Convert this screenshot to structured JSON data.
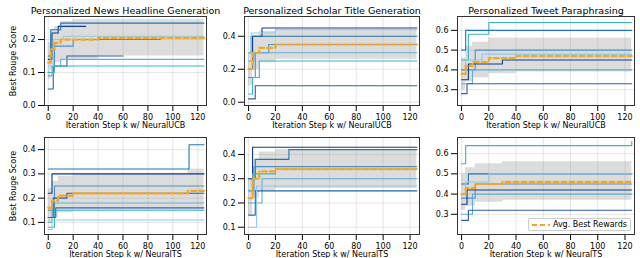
{
  "chart_data": [
    {
      "type": "line",
      "title": "Personalized News Headline Generation",
      "xlabel": "Iteration Step k w/ NeuralUCB",
      "ylabel": "Best Rouge Score",
      "xlim": [
        -3,
        127
      ],
      "xticks": [
        0,
        20,
        40,
        60,
        80,
        100,
        120
      ],
      "ylim": [
        0,
        0.27
      ],
      "yticks": [
        {
          "value": 0,
          "label": "0.0"
        },
        0.1,
        0.2
      ],
      "grid": true,
      "band": {
        "x": [
          0,
          2,
          5,
          10,
          20,
          40,
          125
        ],
        "lower": [
          0.08,
          0.11,
          0.13,
          0.14,
          0.14,
          0.15,
          0.15
        ],
        "upper": [
          0.19,
          0.23,
          0.24,
          0.255,
          0.26,
          0.26,
          0.26
        ]
      },
      "series": [
        {
          "color": "#0b3d91",
          "x": [
            0,
            3,
            8,
            30
          ],
          "values": [
            0.14,
            0.22,
            0.24,
            0.24
          ]
        },
        {
          "color": "#1f77b4",
          "x": [
            0,
            2,
            10,
            125
          ],
          "values": [
            0.15,
            0.23,
            0.25,
            0.25
          ]
        },
        {
          "color": "#4a90c8",
          "x": [
            0,
            5,
            20,
            90
          ],
          "values": [
            0.1,
            0.18,
            0.2,
            0.2
          ]
        },
        {
          "color": "#2b5fa8",
          "x": [
            0,
            4,
            15,
            60
          ],
          "values": [
            0.05,
            0.12,
            0.15,
            0.15
          ]
        },
        {
          "color": "#5fb0d6",
          "x": [
            0,
            3,
            10,
            125
          ],
          "values": [
            0.09,
            0.12,
            0.14,
            0.14
          ]
        },
        {
          "color": "#3bb5c4",
          "x": [
            0,
            5,
            125
          ],
          "values": [
            0.1,
            0.12,
            0.12
          ]
        },
        {
          "color": "#8fc9e6",
          "x": [
            0,
            4,
            12,
            125
          ],
          "values": [
            0.12,
            0.2,
            0.21,
            0.21
          ]
        },
        {
          "name": "Avg. Best Rewards",
          "color": "#f5a623",
          "line_style": "dashed",
          "x": [
            0,
            2,
            5,
            10,
            20,
            40,
            125
          ],
          "values": [
            0.13,
            0.17,
            0.19,
            0.2,
            0.2,
            0.205,
            0.205
          ]
        }
      ]
    },
    {
      "type": "line",
      "title": "Personalized Scholar Title Generation",
      "xlabel": "Iteration Step k w/ NeuralUCB",
      "xlim": [
        -3,
        127
      ],
      "xticks": [
        0,
        20,
        40,
        60,
        80,
        100,
        120
      ],
      "ylim": [
        -0.02,
        0.52
      ],
      "yticks": [
        {
          "value": 0,
          "label": "0.0"
        },
        0.2,
        0.4
      ],
      "grid": true,
      "band": {
        "x": [
          0,
          3,
          8,
          20,
          125
        ],
        "lower": [
          0.1,
          0.2,
          0.24,
          0.26,
          0.26
        ],
        "upper": [
          0.3,
          0.4,
          0.43,
          0.44,
          0.44
        ]
      },
      "series": [
        {
          "color": "#0b3d91",
          "x": [
            0,
            3,
            10,
            125
          ],
          "values": [
            0.2,
            0.4,
            0.45,
            0.45
          ]
        },
        {
          "color": "#1f77b4",
          "x": [
            0,
            2,
            125
          ],
          "values": [
            0.3,
            0.4,
            0.4
          ]
        },
        {
          "color": "#4a90c8",
          "x": [
            0,
            5,
            15,
            125
          ],
          "values": [
            0.15,
            0.3,
            0.35,
            0.35
          ]
        },
        {
          "color": "#5fb0d6",
          "x": [
            0,
            4,
            125
          ],
          "values": [
            0.25,
            0.3,
            0.3
          ]
        },
        {
          "color": "#3bb5c4",
          "x": [
            0,
            3,
            8,
            125
          ],
          "values": [
            0.05,
            0.15,
            0.25,
            0.25
          ]
        },
        {
          "color": "#2b5fa8",
          "x": [
            0,
            5,
            125
          ],
          "values": [
            0.02,
            0.1,
            0.1
          ]
        },
        {
          "color": "#8fc9e6",
          "x": [
            0,
            2,
            20,
            125
          ],
          "values": [
            0.3,
            0.42,
            0.44,
            0.44
          ]
        },
        {
          "name": "Avg. Best Rewards",
          "color": "#f5a623",
          "line_style": "dashed",
          "x": [
            0,
            3,
            8,
            20,
            125
          ],
          "values": [
            0.2,
            0.3,
            0.33,
            0.35,
            0.35
          ]
        }
      ]
    },
    {
      "type": "line",
      "title": "Personalized Tweet Paraphrasing",
      "xlabel": "Iteration Step k w/ NeuralUCB",
      "xlim": [
        -3,
        127
      ],
      "xticks": [
        0,
        20,
        40,
        60,
        80,
        100,
        120
      ],
      "ylim": [
        0.22,
        0.67
      ],
      "yticks": [
        0.3,
        0.4,
        0.5,
        0.6
      ],
      "grid": true,
      "band": {
        "x": [
          0,
          3,
          8,
          20,
          40,
          125
        ],
        "lower": [
          0.3,
          0.34,
          0.36,
          0.38,
          0.39,
          0.39
        ],
        "upper": [
          0.46,
          0.52,
          0.54,
          0.56,
          0.56,
          0.56
        ]
      },
      "series": [
        {
          "color": "#3bb5c4",
          "x": [
            0,
            5,
            20,
            125
          ],
          "values": [
            0.45,
            0.58,
            0.64,
            0.64
          ]
        },
        {
          "color": "#1f77b4",
          "x": [
            0,
            3,
            125
          ],
          "values": [
            0.5,
            0.6,
            0.6
          ]
        },
        {
          "color": "#4a90c8",
          "x": [
            0,
            10,
            125
          ],
          "values": [
            0.4,
            0.5,
            0.5
          ]
        },
        {
          "color": "#0b3d91",
          "x": [
            0,
            5,
            30,
            125
          ],
          "values": [
            0.35,
            0.43,
            0.45,
            0.45
          ]
        },
        {
          "color": "#5fb0d6",
          "x": [
            0,
            8,
            125
          ],
          "values": [
            0.33,
            0.4,
            0.4
          ]
        },
        {
          "color": "#2b5fa8",
          "x": [
            0,
            4,
            125
          ],
          "values": [
            0.28,
            0.33,
            0.33
          ]
        },
        {
          "color": "#8fc9e6",
          "x": [
            0,
            3,
            15,
            125
          ],
          "values": [
            0.38,
            0.45,
            0.48,
            0.48
          ]
        },
        {
          "name": "Avg. Best Rewards",
          "color": "#f5a623",
          "line_style": "dashed",
          "x": [
            0,
            3,
            8,
            20,
            40,
            125
          ],
          "values": [
            0.38,
            0.42,
            0.44,
            0.46,
            0.47,
            0.47
          ]
        }
      ]
    },
    {
      "type": "line",
      "xlabel": "Iteration Step k w/ NeuralTS",
      "ylabel": "Best Rouge Score",
      "xlim": [
        -3,
        127
      ],
      "xticks": [
        0,
        20,
        40,
        60,
        80,
        100,
        120
      ],
      "ylim": [
        0.05,
        0.45
      ],
      "yticks": [
        0.1,
        0.2,
        0.3,
        0.4
      ],
      "grid": true,
      "band": {
        "x": [
          0,
          3,
          8,
          20,
          112,
          125
        ],
        "lower": [
          0.1,
          0.12,
          0.14,
          0.15,
          0.15,
          0.15
        ],
        "upper": [
          0.24,
          0.27,
          0.29,
          0.3,
          0.32,
          0.32
        ]
      },
      "series": [
        {
          "color": "#1f77b4",
          "x": [
            0,
            110,
            113,
            125
          ],
          "values": [
            0.32,
            0.32,
            0.42,
            0.42
          ]
        },
        {
          "color": "#0b3d91",
          "x": [
            0,
            3,
            125
          ],
          "values": [
            0.22,
            0.3,
            0.3
          ]
        },
        {
          "color": "#4a90c8",
          "x": [
            0,
            5,
            125
          ],
          "values": [
            0.15,
            0.25,
            0.25
          ]
        },
        {
          "color": "#2b5fa8",
          "x": [
            0,
            4,
            15,
            125
          ],
          "values": [
            0.12,
            0.2,
            0.22,
            0.22
          ]
        },
        {
          "color": "#5fb0d6",
          "x": [
            0,
            3,
            125
          ],
          "values": [
            0.1,
            0.18,
            0.18
          ]
        },
        {
          "color": "#3bb5c4",
          "x": [
            0,
            5,
            125
          ],
          "values": [
            0.08,
            0.15,
            0.15
          ]
        },
        {
          "color": "#8fc9e6",
          "x": [
            0,
            3,
            125
          ],
          "values": [
            0.07,
            0.11,
            0.11
          ]
        },
        {
          "color": "#2f6db5",
          "x": [
            0,
            6,
            125
          ],
          "values": [
            0.12,
            0.16,
            0.16
          ]
        },
        {
          "name": "Avg. Best Rewards",
          "color": "#f5a623",
          "line_style": "dashed",
          "x": [
            0,
            3,
            8,
            20,
            112,
            125
          ],
          "values": [
            0.16,
            0.19,
            0.21,
            0.22,
            0.23,
            0.23
          ]
        }
      ]
    },
    {
      "type": "line",
      "xlabel": "Iteration Step k w/ NeuralTS",
      "xlim": [
        -3,
        127
      ],
      "xticks": [
        0,
        20,
        40,
        60,
        80,
        100,
        120
      ],
      "ylim": [
        0.07,
        0.47
      ],
      "yticks": [
        0.1,
        0.2,
        0.3,
        0.4
      ],
      "grid": true,
      "band": {
        "x": [
          0,
          3,
          8,
          20,
          125
        ],
        "lower": [
          0.15,
          0.22,
          0.25,
          0.26,
          0.26
        ],
        "upper": [
          0.3,
          0.38,
          0.41,
          0.42,
          0.42
        ]
      },
      "series": [
        {
          "color": "#0b3d91",
          "x": [
            0,
            3,
            125
          ],
          "values": [
            0.3,
            0.43,
            0.43
          ]
        },
        {
          "color": "#1f77b4",
          "x": [
            0,
            5,
            30,
            125
          ],
          "values": [
            0.3,
            0.38,
            0.42,
            0.42
          ]
        },
        {
          "color": "#4a90c8",
          "x": [
            0,
            4,
            125
          ],
          "values": [
            0.25,
            0.35,
            0.35
          ]
        },
        {
          "color": "#5fb0d6",
          "x": [
            0,
            10,
            125
          ],
          "values": [
            0.2,
            0.3,
            0.3
          ]
        },
        {
          "color": "#3bb5c4",
          "x": [
            0,
            3,
            20,
            125
          ],
          "values": [
            0.22,
            0.32,
            0.34,
            0.34
          ]
        },
        {
          "color": "#2b5fa8",
          "x": [
            0,
            5,
            125
          ],
          "values": [
            0.15,
            0.25,
            0.25
          ]
        },
        {
          "color": "#8fc9e6",
          "x": [
            0,
            6,
            125
          ],
          "values": [
            0.1,
            0.27,
            0.27
          ]
        },
        {
          "name": "Avg. Best Rewards",
          "color": "#f5a623",
          "line_style": "dashed",
          "x": [
            0,
            3,
            8,
            20,
            125
          ],
          "values": [
            0.22,
            0.3,
            0.33,
            0.34,
            0.34
          ]
        }
      ]
    },
    {
      "type": "line",
      "xlabel": "Iteration Step k w/ NeuralTS",
      "legend": "lower right",
      "xlim": [
        -3,
        127
      ],
      "xticks": [
        0,
        20,
        40,
        60,
        80,
        100,
        120
      ],
      "ylim": [
        0.2,
        0.68
      ],
      "yticks": [
        0.3,
        0.4,
        0.5,
        0.6
      ],
      "grid": true,
      "band": {
        "x": [
          0,
          3,
          10,
          30,
          125
        ],
        "lower": [
          0.32,
          0.34,
          0.36,
          0.37,
          0.37
        ],
        "upper": [
          0.5,
          0.53,
          0.55,
          0.56,
          0.56
        ]
      },
      "series": [
        {
          "color": "#3bb5c4",
          "x": [
            0,
            3,
            110,
            125
          ],
          "values": [
            0.55,
            0.64,
            0.64,
            0.66
          ]
        },
        {
          "color": "#1f77b4",
          "x": [
            0,
            5,
            125
          ],
          "values": [
            0.45,
            0.5,
            0.5
          ]
        },
        {
          "color": "#4a90c8",
          "x": [
            0,
            10,
            125
          ],
          "values": [
            0.38,
            0.45,
            0.45
          ]
        },
        {
          "color": "#0b3d91",
          "x": [
            0,
            4,
            125
          ],
          "values": [
            0.35,
            0.42,
            0.42
          ]
        },
        {
          "color": "#5fb0d6",
          "x": [
            0,
            8,
            125
          ],
          "values": [
            0.3,
            0.4,
            0.4
          ]
        },
        {
          "color": "#2b5fa8",
          "x": [
            0,
            5,
            125
          ],
          "values": [
            0.27,
            0.32,
            0.32
          ]
        },
        {
          "color": "#8fc9e6",
          "x": [
            0,
            3,
            20,
            125
          ],
          "values": [
            0.4,
            0.46,
            0.5,
            0.5
          ]
        },
        {
          "name": "Avg. Best Rewards",
          "color": "#f5a623",
          "line_style": "dashed",
          "x": [
            0,
            3,
            10,
            30,
            125
          ],
          "values": [
            0.4,
            0.43,
            0.45,
            0.46,
            0.46
          ]
        }
      ]
    }
  ]
}
